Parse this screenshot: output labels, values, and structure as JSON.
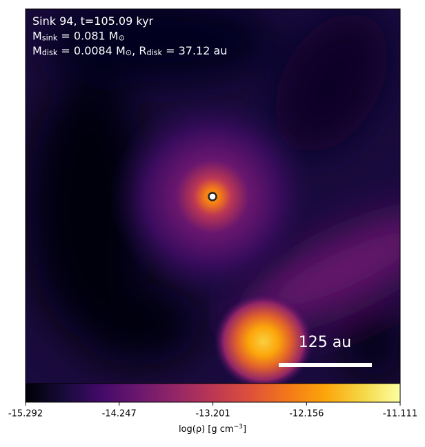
{
  "chart_data": {
    "type": "density-map",
    "annotations": [
      [
        {
          "text": "Sink 94, t=105.09 kyr"
        }
      ],
      [
        {
          "text": "M"
        },
        {
          "text": "sink",
          "sub": true
        },
        {
          "text": " = 0.081 M"
        },
        {
          "text": "⊙",
          "sub": true
        }
      ],
      [
        {
          "text": "M"
        },
        {
          "text": "disk",
          "sub": true
        },
        {
          "text": " = 0.0084 M"
        },
        {
          "text": "⊙",
          "sub": true
        },
        {
          "text": ", R"
        },
        {
          "text": "disk",
          "sub": true
        },
        {
          "text": " = 37.12 au"
        }
      ]
    ],
    "scale_bar": {
      "label": "125 au"
    },
    "colormap": "inferno",
    "colorbar": {
      "label": [
        {
          "text": "log(ρ) [g cm"
        },
        {
          "text": "−3",
          "sup": true
        },
        {
          "text": "]"
        }
      ],
      "lim": [
        -15.292,
        -11.111
      ],
      "ticks": [
        -15.292,
        -14.247,
        -13.201,
        -12.156,
        -11.111
      ]
    }
  }
}
